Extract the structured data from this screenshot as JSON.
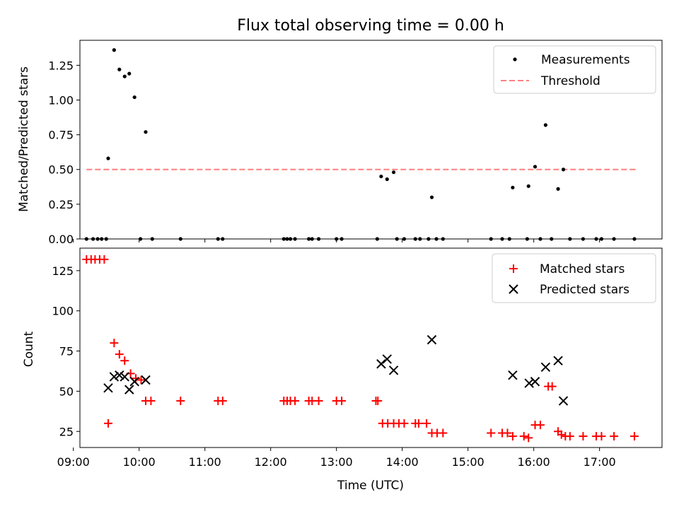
{
  "chart_data": [
    {
      "type": "scatter",
      "title": "Flux total observing time = 0.00 h",
      "ylabel": "Matched/Predicted stars",
      "xlabel": "",
      "xlim": [
        9.1,
        17.95
      ],
      "ylim": [
        0,
        1.43
      ],
      "yticks": [
        0,
        0.25,
        0.5,
        0.75,
        1.0,
        1.25
      ],
      "ytick_labels": [
        "0.00",
        "0.25",
        "0.50",
        "0.75",
        "1.00",
        "1.25"
      ],
      "xticks": [
        9,
        10,
        11,
        12,
        13,
        14,
        15,
        16,
        17
      ],
      "legend": "top-right",
      "threshold": {
        "name": "Threshold",
        "value": 0.5,
        "x": [
          9.2,
          17.55
        ],
        "color": "#ff7f7f"
      },
      "series": [
        {
          "name": "Measurements",
          "color": "#000000",
          "points": [
            [
              9.2,
              0
            ],
            [
              9.3,
              0
            ],
            [
              9.37,
              0
            ],
            [
              9.43,
              0
            ],
            [
              9.5,
              0
            ],
            [
              9.53,
              0.58
            ],
            [
              9.62,
              1.36
            ],
            [
              9.7,
              1.22
            ],
            [
              9.78,
              1.17
            ],
            [
              9.85,
              1.19
            ],
            [
              9.93,
              1.02
            ],
            [
              10.1,
              0.77
            ],
            [
              10.02,
              0
            ],
            [
              10.2,
              0
            ],
            [
              10.63,
              0
            ],
            [
              11.2,
              0
            ],
            [
              11.27,
              0
            ],
            [
              12.2,
              0
            ],
            [
              12.25,
              0
            ],
            [
              12.3,
              0
            ],
            [
              12.37,
              0
            ],
            [
              12.58,
              0
            ],
            [
              12.63,
              0
            ],
            [
              12.73,
              0
            ],
            [
              13.0,
              0
            ],
            [
              13.08,
              0
            ],
            [
              13.62,
              0
            ],
            [
              13.68,
              0.45
            ],
            [
              13.77,
              0.43
            ],
            [
              13.87,
              0.48
            ],
            [
              13.92,
              0
            ],
            [
              14.03,
              0
            ],
            [
              14.2,
              0
            ],
            [
              14.27,
              0
            ],
            [
              14.4,
              0
            ],
            [
              14.45,
              0.3
            ],
            [
              14.52,
              0
            ],
            [
              14.62,
              0
            ],
            [
              15.35,
              0
            ],
            [
              15.52,
              0
            ],
            [
              15.63,
              0
            ],
            [
              15.68,
              0.37
            ],
            [
              15.92,
              0.38
            ],
            [
              16.02,
              0.52
            ],
            [
              16.18,
              0.82
            ],
            [
              16.37,
              0.36
            ],
            [
              16.45,
              0.5
            ],
            [
              15.9,
              0
            ],
            [
              16.1,
              0
            ],
            [
              16.27,
              0
            ],
            [
              16.55,
              0
            ],
            [
              16.75,
              0
            ],
            [
              16.95,
              0
            ],
            [
              17.03,
              0
            ],
            [
              17.22,
              0
            ],
            [
              17.53,
              0
            ]
          ]
        }
      ]
    },
    {
      "type": "scatter",
      "title": "",
      "ylabel": "Count",
      "xlabel": "Time (UTC)",
      "xlim": [
        9.1,
        17.95
      ],
      "ylim": [
        15,
        139
      ],
      "yticks": [
        25,
        50,
        75,
        100,
        125
      ],
      "ytick_labels": [
        "25",
        "50",
        "75",
        "100",
        "125"
      ],
      "xticks": [
        9,
        10,
        11,
        12,
        13,
        14,
        15,
        16,
        17
      ],
      "xtick_labels": [
        "09:00",
        "10:00",
        "11:00",
        "12:00",
        "13:00",
        "14:00",
        "15:00",
        "16:00",
        "17:00"
      ],
      "legend": "top-right",
      "series": [
        {
          "name": "Matched stars",
          "marker": "plus",
          "color": "#ff0000",
          "points": [
            [
              9.2,
              132
            ],
            [
              9.27,
              132
            ],
            [
              9.33,
              132
            ],
            [
              9.4,
              132
            ],
            [
              9.47,
              132
            ],
            [
              9.53,
              30
            ],
            [
              9.62,
              80
            ],
            [
              9.7,
              73
            ],
            [
              9.78,
              69
            ],
            [
              9.87,
              61
            ],
            [
              9.95,
              58
            ],
            [
              10.03,
              57
            ],
            [
              10.1,
              44
            ],
            [
              10.18,
              44
            ],
            [
              10.63,
              44
            ],
            [
              11.2,
              44
            ],
            [
              11.27,
              44
            ],
            [
              12.2,
              44
            ],
            [
              12.25,
              44
            ],
            [
              12.3,
              44
            ],
            [
              12.37,
              44
            ],
            [
              12.58,
              44
            ],
            [
              12.63,
              44
            ],
            [
              12.73,
              44
            ],
            [
              13.0,
              44
            ],
            [
              13.08,
              44
            ],
            [
              13.6,
              44
            ],
            [
              13.63,
              44
            ],
            [
              13.7,
              30
            ],
            [
              13.78,
              30
            ],
            [
              13.87,
              30
            ],
            [
              13.95,
              30
            ],
            [
              14.03,
              30
            ],
            [
              14.2,
              30
            ],
            [
              14.25,
              30
            ],
            [
              14.37,
              30
            ],
            [
              14.45,
              24
            ],
            [
              14.53,
              24
            ],
            [
              14.62,
              24
            ],
            [
              15.35,
              24
            ],
            [
              15.52,
              24
            ],
            [
              15.6,
              24
            ],
            [
              15.68,
              22
            ],
            [
              15.85,
              22
            ],
            [
              15.92,
              21
            ],
            [
              16.02,
              29
            ],
            [
              16.1,
              29
            ],
            [
              16.22,
              53
            ],
            [
              16.28,
              53
            ],
            [
              16.37,
              25
            ],
            [
              16.42,
              23
            ],
            [
              16.48,
              22
            ],
            [
              16.55,
              22
            ],
            [
              16.75,
              22
            ],
            [
              16.95,
              22
            ],
            [
              17.03,
              22
            ],
            [
              17.22,
              22
            ],
            [
              17.53,
              22
            ]
          ]
        },
        {
          "name": "Predicted stars",
          "marker": "x",
          "color": "#000000",
          "points": [
            [
              9.53,
              52
            ],
            [
              9.62,
              59
            ],
            [
              9.7,
              60
            ],
            [
              9.78,
              59
            ],
            [
              9.85,
              51
            ],
            [
              9.93,
              56
            ],
            [
              10.1,
              57
            ],
            [
              13.68,
              67
            ],
            [
              13.77,
              70
            ],
            [
              13.87,
              63
            ],
            [
              14.45,
              82
            ],
            [
              15.68,
              60
            ],
            [
              15.93,
              55
            ],
            [
              16.02,
              56
            ],
            [
              16.18,
              65
            ],
            [
              16.37,
              69
            ],
            [
              16.45,
              44
            ]
          ]
        }
      ]
    }
  ]
}
